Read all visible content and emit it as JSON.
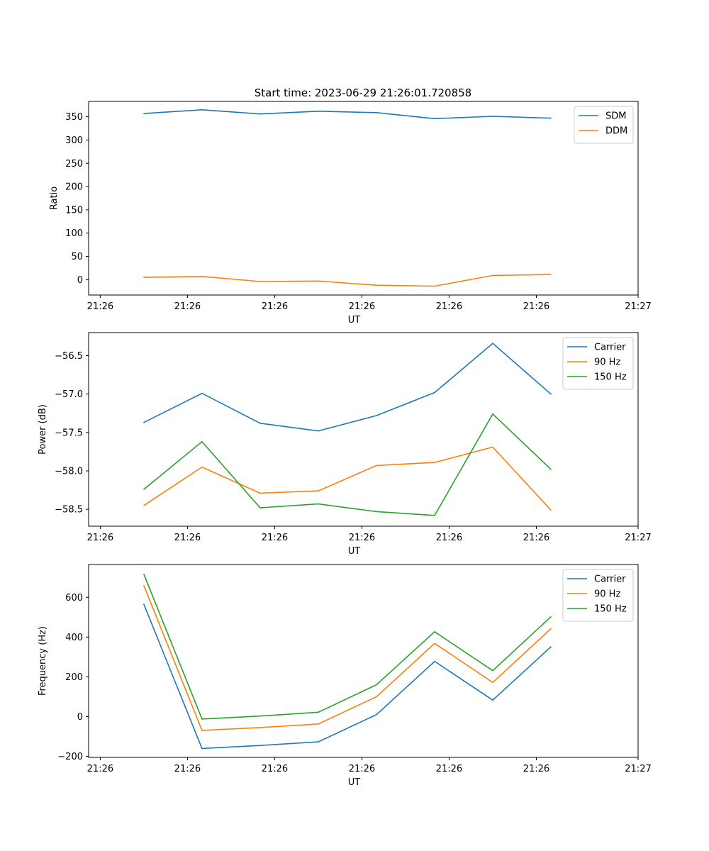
{
  "figure": {
    "title": "Start time: 2023-06-29 21:26:01.720858"
  },
  "chart_data": [
    {
      "type": "line",
      "title": "Start time: 2023-06-29 21:26:01.720858",
      "xlabel": "UT",
      "ylabel": "Ratio",
      "x_ticks": [
        "21:26",
        "21:26",
        "21:26",
        "21:26",
        "21:26",
        "21:26",
        "21:27"
      ],
      "x_tick_values": [
        0,
        1.5,
        3,
        4.5,
        6,
        7.5,
        9.25
      ],
      "xlim": [
        -0.2,
        9.25
      ],
      "ylim": [
        -33,
        383
      ],
      "y_ticks": [
        0,
        50,
        100,
        150,
        200,
        250,
        300,
        350
      ],
      "y_tick_labels": [
        "0",
        "50",
        "100",
        "150",
        "200",
        "250",
        "300",
        "350"
      ],
      "legend_position": "upper right",
      "grid": false,
      "x": [
        0.75,
        1.75,
        2.75,
        3.75,
        4.75,
        5.75,
        6.75,
        7.75
      ],
      "series": [
        {
          "name": "SDM",
          "color": "#1f77b4",
          "values": [
            357,
            365,
            356,
            362,
            359,
            346,
            351,
            347
          ]
        },
        {
          "name": "DDM",
          "color": "#ff7f0e",
          "values": [
            5,
            7,
            -4,
            -3,
            -12,
            -14,
            9,
            11
          ]
        }
      ]
    },
    {
      "type": "line",
      "xlabel": "UT",
      "ylabel": "Power (dB)",
      "x_ticks": [
        "21:26",
        "21:26",
        "21:26",
        "21:26",
        "21:26",
        "21:26",
        "21:27"
      ],
      "x_tick_values": [
        0,
        1.5,
        3,
        4.5,
        6,
        7.5,
        9.25
      ],
      "xlim": [
        -0.2,
        9.25
      ],
      "ylim": [
        -58.72,
        -56.2
      ],
      "y_ticks": [
        -58.5,
        -58.0,
        -57.5,
        -57.0,
        -56.5
      ],
      "y_tick_labels": [
        "−58.5",
        "−58.0",
        "−57.5",
        "−57.0",
        "−56.5"
      ],
      "legend_position": "upper right",
      "grid": false,
      "x": [
        0.75,
        1.75,
        2.75,
        3.75,
        4.75,
        5.75,
        6.75,
        7.75
      ],
      "series": [
        {
          "name": "Carrier",
          "color": "#1f77b4",
          "values": [
            -57.37,
            -56.99,
            -57.38,
            -57.48,
            -57.28,
            -56.98,
            -56.34,
            -57.0
          ]
        },
        {
          "name": "90 Hz",
          "color": "#ff7f0e",
          "values": [
            -58.45,
            -57.95,
            -58.29,
            -58.26,
            -57.93,
            -57.89,
            -57.69,
            -58.51
          ]
        },
        {
          "name": "150 Hz",
          "color": "#2ca02c",
          "values": [
            -58.24,
            -57.62,
            -58.48,
            -58.43,
            -58.53,
            -58.58,
            -57.26,
            -57.98
          ]
        }
      ]
    },
    {
      "type": "line",
      "xlabel": "UT",
      "ylabel": "Frequency (Hz)",
      "x_ticks": [
        "21:26",
        "21:26",
        "21:26",
        "21:26",
        "21:26",
        "21:26",
        "21:27"
      ],
      "x_tick_values": [
        0,
        1.5,
        3,
        4.5,
        6,
        7.5,
        9.25
      ],
      "xlim": [
        -0.2,
        9.25
      ],
      "ylim": [
        -205,
        765
      ],
      "y_ticks": [
        -200,
        0,
        200,
        400,
        600
      ],
      "y_tick_labels": [
        "−200",
        "0",
        "200",
        "400",
        "600"
      ],
      "legend_position": "upper right",
      "grid": false,
      "x": [
        0.75,
        1.75,
        2.75,
        3.75,
        4.75,
        5.75,
        6.75,
        7.75
      ],
      "series": [
        {
          "name": "Carrier",
          "color": "#1f77b4",
          "values": [
            565,
            -160,
            -145,
            -127,
            10,
            278,
            83,
            351
          ]
        },
        {
          "name": "90 Hz",
          "color": "#ff7f0e",
          "values": [
            659,
            -69,
            -55,
            -37,
            100,
            368,
            172,
            442
          ]
        },
        {
          "name": "150 Hz",
          "color": "#2ca02c",
          "values": [
            716,
            -12,
            3,
            22,
            160,
            427,
            231,
            502
          ]
        }
      ]
    }
  ]
}
